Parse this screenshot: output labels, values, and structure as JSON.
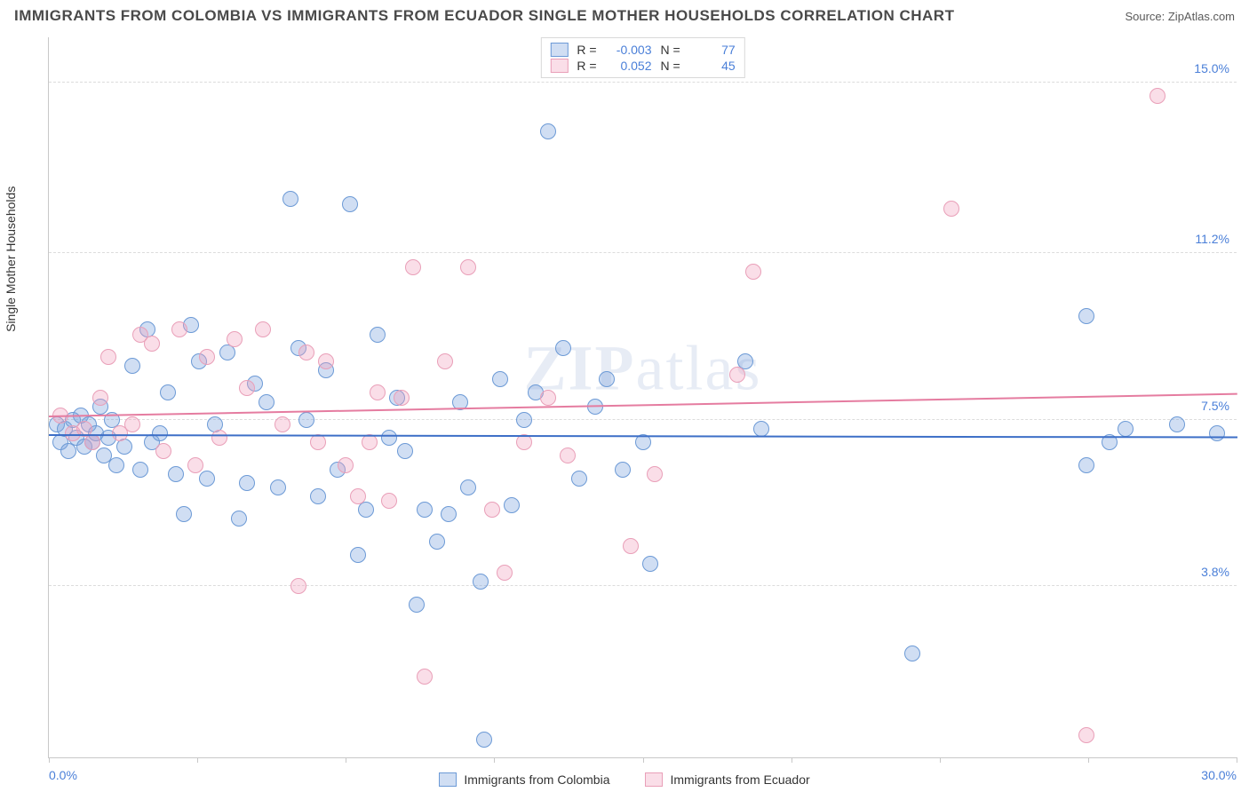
{
  "title": "IMMIGRANTS FROM COLOMBIA VS IMMIGRANTS FROM ECUADOR SINGLE MOTHER HOUSEHOLDS CORRELATION CHART",
  "source": "Source: ZipAtlas.com",
  "ylabel": "Single Mother Households",
  "watermark": "ZIPatlas",
  "chart": {
    "type": "scatter",
    "background_color": "#ffffff",
    "grid_color": "#dcdcdc",
    "axis_color": "#c8c8c8",
    "xlim": [
      0.0,
      30.0
    ],
    "ylim": [
      0.0,
      16.0
    ],
    "ytick_values": [
      3.8,
      7.5,
      11.2,
      15.0
    ],
    "ytick_labels": [
      "3.8%",
      "7.5%",
      "11.2%",
      "15.0%"
    ],
    "xtick_values": [
      0,
      3.75,
      7.5,
      11.25,
      15.0,
      18.75,
      22.5,
      26.25,
      30.0
    ],
    "xlim_labels": {
      "min": "0.0%",
      "max": "30.0%"
    },
    "label_color": "#4a7fd8",
    "label_fontsize": 14,
    "marker_radius": 9,
    "marker_border_width": 1.5,
    "line_width": 2
  },
  "series": [
    {
      "name": "Immigrants from Colombia",
      "fill_color": "rgba(120,160,220,0.35)",
      "stroke_color": "#6c9ad6",
      "line_color": "#3d6fc7",
      "R": "-0.003",
      "N": "77",
      "trend": {
        "y_at_xmin": 7.15,
        "y_at_xmax": 7.1
      },
      "points": [
        [
          0.2,
          7.4
        ],
        [
          0.3,
          7.0
        ],
        [
          0.4,
          7.3
        ],
        [
          0.5,
          6.8
        ],
        [
          0.6,
          7.5
        ],
        [
          0.7,
          7.1
        ],
        [
          0.8,
          7.6
        ],
        [
          0.9,
          6.9
        ],
        [
          1.0,
          7.4
        ],
        [
          1.1,
          7.0
        ],
        [
          1.2,
          7.2
        ],
        [
          1.3,
          7.8
        ],
        [
          1.4,
          6.7
        ],
        [
          1.5,
          7.1
        ],
        [
          1.6,
          7.5
        ],
        [
          1.7,
          6.5
        ],
        [
          1.9,
          6.9
        ],
        [
          2.1,
          8.7
        ],
        [
          2.3,
          6.4
        ],
        [
          2.5,
          9.5
        ],
        [
          2.6,
          7.0
        ],
        [
          2.8,
          7.2
        ],
        [
          3.0,
          8.1
        ],
        [
          3.2,
          6.3
        ],
        [
          3.4,
          5.4
        ],
        [
          3.6,
          9.6
        ],
        [
          3.8,
          8.8
        ],
        [
          4.0,
          6.2
        ],
        [
          4.2,
          7.4
        ],
        [
          4.5,
          9.0
        ],
        [
          4.8,
          5.3
        ],
        [
          5.0,
          6.1
        ],
        [
          5.2,
          8.3
        ],
        [
          5.5,
          7.9
        ],
        [
          5.8,
          6.0
        ],
        [
          6.1,
          12.4
        ],
        [
          6.3,
          9.1
        ],
        [
          6.5,
          7.5
        ],
        [
          6.8,
          5.8
        ],
        [
          7.0,
          8.6
        ],
        [
          7.3,
          6.4
        ],
        [
          7.6,
          12.3
        ],
        [
          7.8,
          4.5
        ],
        [
          8.0,
          5.5
        ],
        [
          8.3,
          9.4
        ],
        [
          8.6,
          7.1
        ],
        [
          8.8,
          8.0
        ],
        [
          9.0,
          6.8
        ],
        [
          9.3,
          3.4
        ],
        [
          9.5,
          5.5
        ],
        [
          9.8,
          4.8
        ],
        [
          10.1,
          5.4
        ],
        [
          10.4,
          7.9
        ],
        [
          10.6,
          6.0
        ],
        [
          10.9,
          3.9
        ],
        [
          11.0,
          0.4
        ],
        [
          11.4,
          8.4
        ],
        [
          11.7,
          5.6
        ],
        [
          12.0,
          7.5
        ],
        [
          12.3,
          8.1
        ],
        [
          12.6,
          13.9
        ],
        [
          13.0,
          9.1
        ],
        [
          13.4,
          6.2
        ],
        [
          13.8,
          7.8
        ],
        [
          14.1,
          8.4
        ],
        [
          14.5,
          6.4
        ],
        [
          15.0,
          7.0
        ],
        [
          15.2,
          4.3
        ],
        [
          17.6,
          8.8
        ],
        [
          18.0,
          7.3
        ],
        [
          21.8,
          2.3
        ],
        [
          26.2,
          9.8
        ],
        [
          26.2,
          6.5
        ],
        [
          26.8,
          7.0
        ],
        [
          27.2,
          7.3
        ],
        [
          28.5,
          7.4
        ],
        [
          29.5,
          7.2
        ]
      ]
    },
    {
      "name": "Immigrants from Ecuador",
      "fill_color": "rgba(240,160,190,0.35)",
      "stroke_color": "#e99fb8",
      "line_color": "#e57ca0",
      "R": "0.052",
      "N": "45",
      "trend": {
        "y_at_xmin": 7.55,
        "y_at_xmax": 8.05
      },
      "points": [
        [
          0.3,
          7.6
        ],
        [
          0.6,
          7.2
        ],
        [
          0.9,
          7.3
        ],
        [
          1.1,
          7.0
        ],
        [
          1.3,
          8.0
        ],
        [
          1.5,
          8.9
        ],
        [
          1.8,
          7.2
        ],
        [
          2.1,
          7.4
        ],
        [
          2.3,
          9.4
        ],
        [
          2.6,
          9.2
        ],
        [
          2.9,
          6.8
        ],
        [
          3.3,
          9.5
        ],
        [
          3.7,
          6.5
        ],
        [
          4.0,
          8.9
        ],
        [
          4.3,
          7.1
        ],
        [
          4.7,
          9.3
        ],
        [
          5.0,
          8.2
        ],
        [
          5.4,
          9.5
        ],
        [
          5.9,
          7.4
        ],
        [
          6.3,
          3.8
        ],
        [
          6.5,
          9.0
        ],
        [
          6.8,
          7.0
        ],
        [
          7.0,
          8.8
        ],
        [
          7.5,
          6.5
        ],
        [
          7.8,
          5.8
        ],
        [
          8.1,
          7.0
        ],
        [
          8.3,
          8.1
        ],
        [
          8.6,
          5.7
        ],
        [
          8.9,
          8.0
        ],
        [
          9.2,
          10.9
        ],
        [
          9.5,
          1.8
        ],
        [
          10.0,
          8.8
        ],
        [
          10.6,
          10.9
        ],
        [
          11.2,
          5.5
        ],
        [
          11.5,
          4.1
        ],
        [
          12.0,
          7.0
        ],
        [
          12.6,
          8.0
        ],
        [
          13.1,
          6.7
        ],
        [
          14.7,
          4.7
        ],
        [
          15.3,
          6.3
        ],
        [
          17.4,
          8.5
        ],
        [
          17.8,
          10.8
        ],
        [
          22.8,
          12.2
        ],
        [
          26.2,
          0.5
        ],
        [
          28.0,
          14.7
        ]
      ]
    }
  ],
  "legend_top": {
    "rows": [
      {
        "series": 0,
        "R_label": "R =",
        "N_label": "N ="
      },
      {
        "series": 1,
        "R_label": "R =",
        "N_label": "N ="
      }
    ]
  }
}
